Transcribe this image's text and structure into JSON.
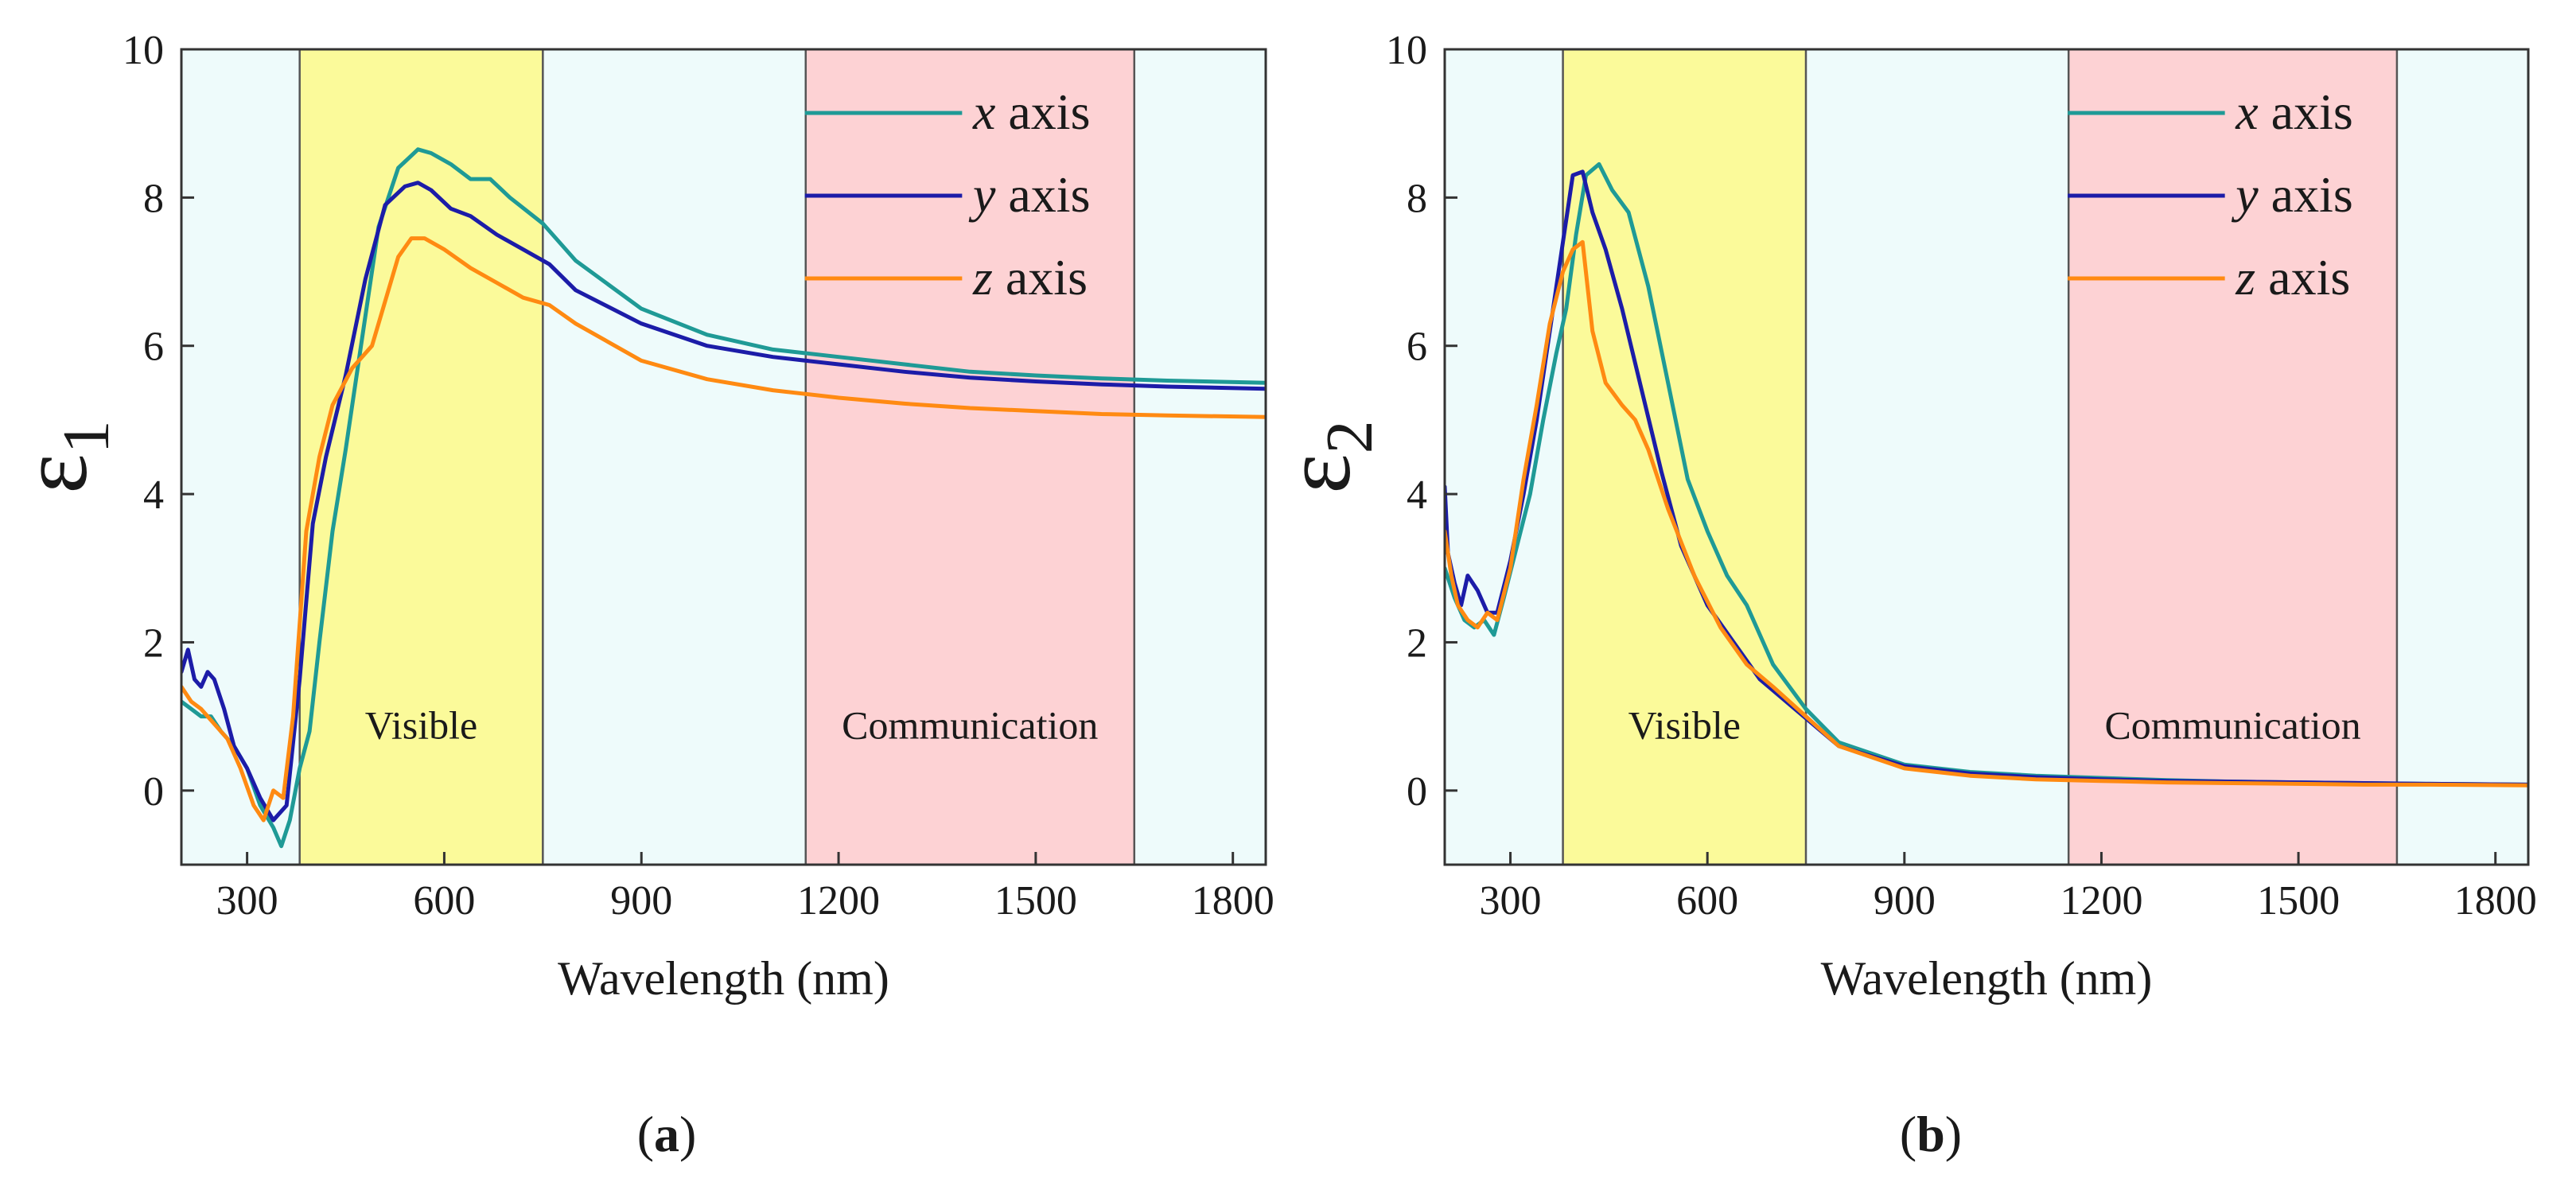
{
  "chart_data": [
    {
      "type": "line",
      "panel_label": "(a)",
      "ylabel_symbol": "ε",
      "ylabel_subscript": "1",
      "xlabel": "Wavelength (nm)",
      "xlim": [
        200,
        1850
      ],
      "ylim": [
        -1,
        10
      ],
      "xticks": [
        300,
        600,
        900,
        1200,
        1500,
        1800
      ],
      "yticks": [
        0,
        2,
        4,
        6,
        8,
        10
      ],
      "grid": false,
      "legend_position": "top-right",
      "regions": [
        {
          "x0": 200,
          "x1": 380,
          "color": "#eefbfb",
          "label": ""
        },
        {
          "x0": 380,
          "x1": 750,
          "color": "#fbfa9a",
          "label": "Visible"
        },
        {
          "x0": 750,
          "x1": 1150,
          "color": "#eefbfb",
          "label": ""
        },
        {
          "x0": 1150,
          "x1": 1650,
          "color": "#fdd2d4",
          "label": "Communication"
        },
        {
          "x0": 1650,
          "x1": 1850,
          "color": "#eefbfb",
          "label": ""
        }
      ],
      "series": [
        {
          "name_var": "x",
          "name_rest": " axis",
          "color": "#1f9a96",
          "x": [
            200,
            215,
            230,
            245,
            260,
            280,
            300,
            320,
            340,
            352,
            365,
            380,
            395,
            410,
            430,
            450,
            470,
            500,
            530,
            560,
            580,
            610,
            640,
            670,
            700,
            750,
            800,
            900,
            1000,
            1100,
            1200,
            1300,
            1400,
            1500,
            1600,
            1700,
            1850
          ],
          "y": [
            1.2,
            1.1,
            1.0,
            1.0,
            0.8,
            0.6,
            0.3,
            -0.2,
            -0.5,
            -0.75,
            -0.4,
            0.3,
            0.8,
            2.0,
            3.5,
            4.6,
            5.8,
            7.6,
            8.4,
            8.65,
            8.6,
            8.45,
            8.25,
            8.25,
            8.0,
            7.65,
            7.15,
            6.5,
            6.15,
            5.95,
            5.85,
            5.75,
            5.65,
            5.6,
            5.56,
            5.53,
            5.5
          ]
        },
        {
          "name_var": "y",
          "name_rest": " axis",
          "color": "#1c1ca8",
          "x": [
            200,
            210,
            220,
            230,
            240,
            250,
            265,
            280,
            300,
            320,
            340,
            360,
            380,
            400,
            420,
            450,
            480,
            510,
            540,
            560,
            580,
            610,
            640,
            680,
            720,
            760,
            800,
            900,
            1000,
            1100,
            1200,
            1300,
            1400,
            1500,
            1600,
            1700,
            1850
          ],
          "y": [
            1.6,
            1.9,
            1.5,
            1.4,
            1.6,
            1.5,
            1.1,
            0.6,
            0.3,
            -0.1,
            -0.4,
            -0.2,
            1.5,
            3.6,
            4.5,
            5.6,
            6.9,
            7.9,
            8.15,
            8.2,
            8.1,
            7.85,
            7.75,
            7.5,
            7.3,
            7.1,
            6.75,
            6.3,
            6.0,
            5.85,
            5.75,
            5.65,
            5.57,
            5.52,
            5.48,
            5.45,
            5.42
          ]
        },
        {
          "name_var": "z",
          "name_rest": " axis",
          "color": "#ff8a12",
          "x": [
            200,
            215,
            230,
            250,
            270,
            290,
            310,
            325,
            340,
            355,
            370,
            390,
            410,
            430,
            460,
            490,
            510,
            530,
            550,
            570,
            600,
            640,
            680,
            720,
            760,
            800,
            900,
            1000,
            1100,
            1200,
            1300,
            1400,
            1500,
            1600,
            1700,
            1850
          ],
          "y": [
            1.4,
            1.2,
            1.1,
            0.9,
            0.7,
            0.3,
            -0.2,
            -0.4,
            0.0,
            -0.1,
            1.0,
            3.5,
            4.5,
            5.2,
            5.7,
            6.0,
            6.6,
            7.2,
            7.45,
            7.45,
            7.3,
            7.05,
            6.85,
            6.65,
            6.55,
            6.3,
            5.8,
            5.55,
            5.4,
            5.3,
            5.22,
            5.16,
            5.12,
            5.08,
            5.06,
            5.04
          ]
        }
      ]
    },
    {
      "type": "line",
      "panel_label": "(b)",
      "ylabel_symbol": "ε",
      "ylabel_subscript": "2",
      "xlabel": "Wavelength (nm)",
      "xlim": [
        200,
        1850
      ],
      "ylim": [
        -1,
        10
      ],
      "xticks": [
        300,
        600,
        900,
        1200,
        1500,
        1800
      ],
      "yticks": [
        0,
        2,
        4,
        6,
        8,
        10
      ],
      "grid": false,
      "legend_position": "top-right",
      "regions": [
        {
          "x0": 200,
          "x1": 380,
          "color": "#eefbfb",
          "label": ""
        },
        {
          "x0": 380,
          "x1": 750,
          "color": "#fbfa9a",
          "label": "Visible"
        },
        {
          "x0": 750,
          "x1": 1150,
          "color": "#eefbfb",
          "label": ""
        },
        {
          "x0": 1150,
          "x1": 1650,
          "color": "#fdd2d4",
          "label": "Communication"
        },
        {
          "x0": 1650,
          "x1": 1850,
          "color": "#eefbfb",
          "label": ""
        }
      ],
      "series": [
        {
          "name_var": "x",
          "name_rest": " axis",
          "color": "#1f9a96",
          "x": [
            200,
            215,
            230,
            245,
            260,
            275,
            290,
            310,
            330,
            350,
            370,
            385,
            400,
            415,
            435,
            455,
            480,
            510,
            540,
            570,
            600,
            630,
            660,
            700,
            750,
            800,
            900,
            1000,
            1100,
            1200,
            1300,
            1400,
            1500,
            1600,
            1700,
            1850
          ],
          "y": [
            3.0,
            2.6,
            2.3,
            2.2,
            2.3,
            2.1,
            2.6,
            3.3,
            4.0,
            5.0,
            5.9,
            6.5,
            7.5,
            8.3,
            8.45,
            8.1,
            7.8,
            6.8,
            5.5,
            4.2,
            3.5,
            2.9,
            2.5,
            1.7,
            1.1,
            0.65,
            0.35,
            0.25,
            0.2,
            0.17,
            0.14,
            0.12,
            0.11,
            0.1,
            0.09,
            0.08
          ]
        },
        {
          "name_var": "y",
          "name_rest": " axis",
          "color": "#1c1ca8",
          "x": [
            200,
            205,
            215,
            225,
            235,
            250,
            265,
            280,
            300,
            320,
            340,
            360,
            380,
            395,
            410,
            425,
            445,
            470,
            500,
            530,
            560,
            600,
            640,
            680,
            720,
            760,
            800,
            900,
            1000,
            1100,
            1200,
            1300,
            1400,
            1500,
            1600,
            1700,
            1850
          ],
          "y": [
            4.1,
            3.2,
            2.8,
            2.5,
            2.9,
            2.7,
            2.4,
            2.4,
            3.1,
            4.0,
            5.0,
            6.2,
            7.4,
            8.3,
            8.35,
            7.8,
            7.3,
            6.5,
            5.4,
            4.3,
            3.3,
            2.5,
            2.0,
            1.5,
            1.2,
            0.9,
            0.6,
            0.33,
            0.23,
            0.18,
            0.15,
            0.13,
            0.12,
            0.11,
            0.1,
            0.09,
            0.08
          ]
        },
        {
          "name_var": "z",
          "name_rest": " axis",
          "color": "#ff8a12",
          "x": [
            200,
            210,
            220,
            235,
            250,
            265,
            280,
            300,
            320,
            340,
            360,
            380,
            395,
            410,
            425,
            445,
            470,
            490,
            510,
            540,
            580,
            620,
            660,
            700,
            750,
            800,
            900,
            1000,
            1100,
            1200,
            1300,
            1400,
            1500,
            1600,
            1700,
            1850
          ],
          "y": [
            3.5,
            2.9,
            2.5,
            2.3,
            2.2,
            2.4,
            2.3,
            3.0,
            4.2,
            5.2,
            6.3,
            7.0,
            7.3,
            7.4,
            6.2,
            5.5,
            5.2,
            5.0,
            4.6,
            3.8,
            2.9,
            2.2,
            1.7,
            1.4,
            1.0,
            0.6,
            0.3,
            0.2,
            0.15,
            0.13,
            0.11,
            0.1,
            0.09,
            0.08,
            0.08,
            0.07
          ]
        }
      ]
    }
  ]
}
